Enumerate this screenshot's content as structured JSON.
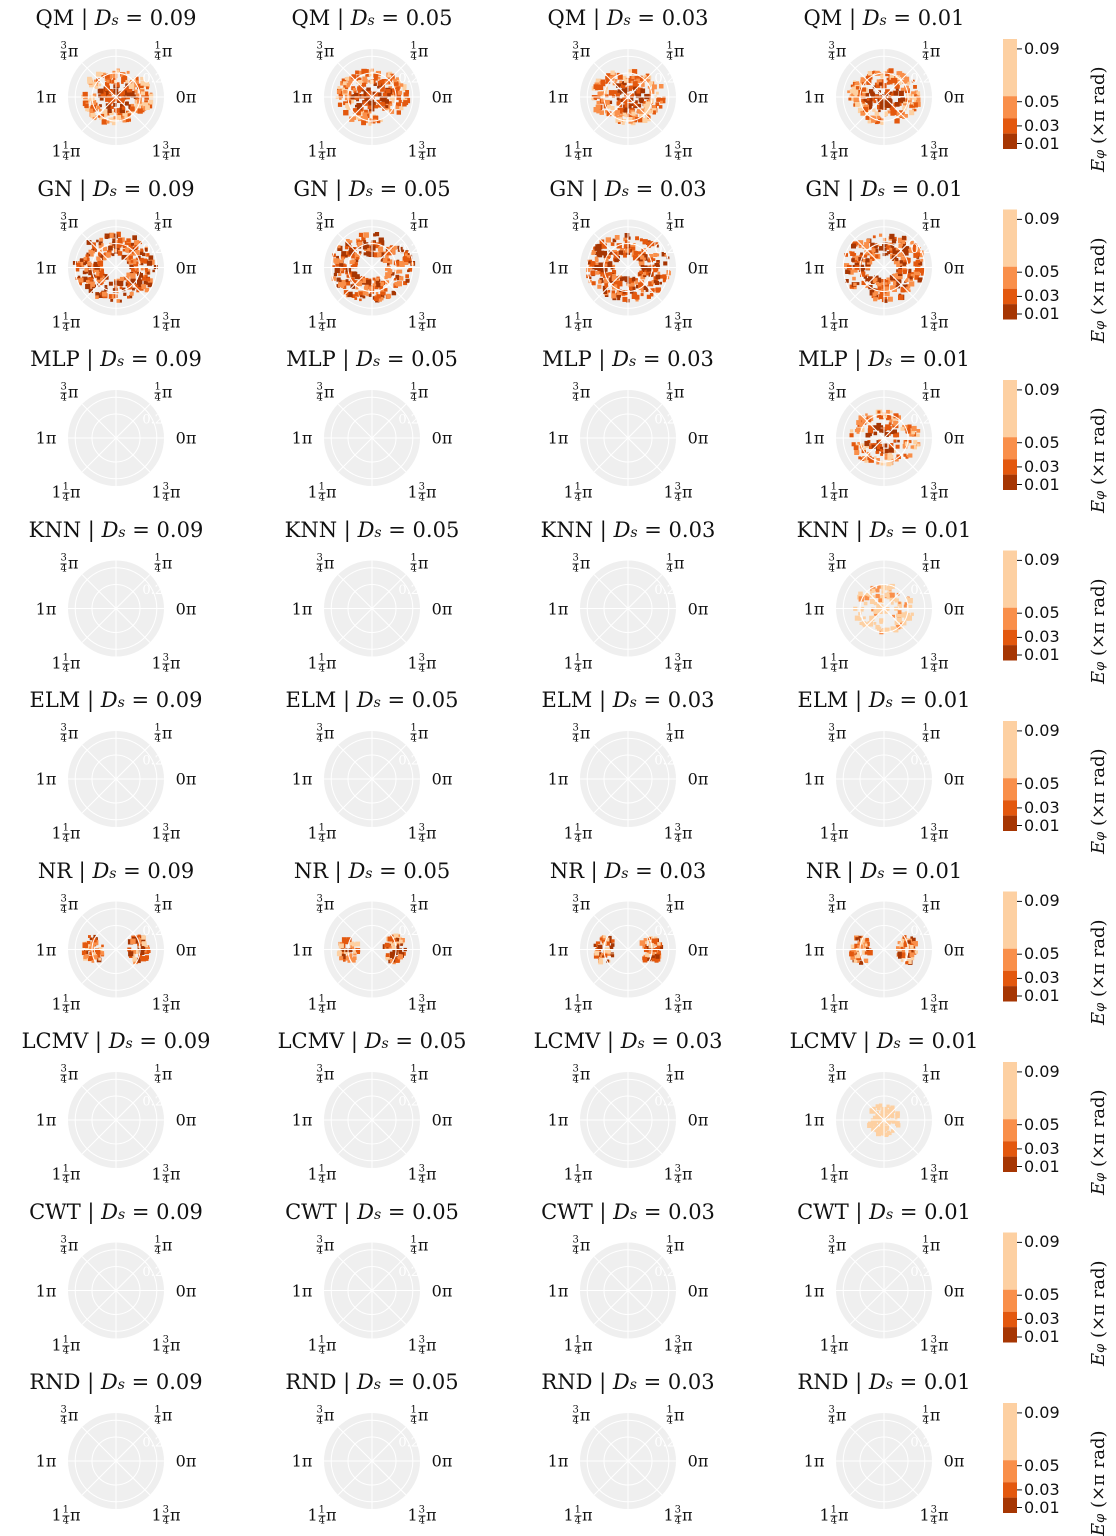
{
  "figure": {
    "methods": [
      "QM",
      "GN",
      "MLP",
      "KNN",
      "ELM",
      "NR",
      "LCMV",
      "CWT",
      "RND"
    ],
    "ds_values": [
      "0.09",
      "0.05",
      "0.03",
      "0.01"
    ],
    "title_template": {
      "sep": " | ",
      "var": "D",
      "sub": "s",
      "eq": " = "
    },
    "angle_labels": {
      "top_left": {
        "num": "3",
        "den": "4",
        "sym": "π"
      },
      "top_right": {
        "num": "1",
        "den": "4",
        "sym": "π"
      },
      "left": "1π",
      "right": "0π",
      "bottom_left": {
        "whole": "1",
        "num": "1",
        "den": "4",
        "sym": "π"
      },
      "bottom_right": {
        "whole": "1",
        "num": "3",
        "den": "4",
        "sym": "π"
      }
    },
    "radial_tick_label": "0.2",
    "colorbar": {
      "ticks": [
        "0.09",
        "0.05",
        "0.03",
        "0.01"
      ],
      "label_var": "E",
      "label_sub": "φ",
      "label_rest": " (×π rad)",
      "colors": [
        "#fdd0a2",
        "#f98f4a",
        "#e3580e",
        "#a63603"
      ]
    },
    "colors": {
      "polar_bg": "#efefef",
      "grid": "#ffffff",
      "light": "#fdd0a2",
      "mid": "#f98f4a",
      "dark": "#e3580e",
      "darkest": "#a63603"
    }
  },
  "chart_data": {
    "type": "heatmap",
    "description_kind": "polar error maps per method and Ds",
    "rows": [
      {
        "method": "QM",
        "fill": [
          0.9,
          0.85,
          0.85,
          0.85
        ],
        "pattern": "disc"
      },
      {
        "method": "GN",
        "fill": [
          1.0,
          1.0,
          1.0,
          1.0
        ],
        "pattern": "ring"
      },
      {
        "method": "MLP",
        "fill": [
          0,
          0,
          0,
          0.7
        ],
        "pattern": "disc-split"
      },
      {
        "method": "KNN",
        "fill": [
          0,
          0,
          0,
          0.6
        ],
        "pattern": "sparse-light"
      },
      {
        "method": "ELM",
        "fill": [
          0,
          0,
          0,
          0
        ],
        "pattern": "none"
      },
      {
        "method": "NR",
        "fill": [
          0.35,
          0.4,
          0.4,
          0.4
        ],
        "pattern": "side-blobs"
      },
      {
        "method": "LCMV",
        "fill": [
          0,
          0,
          0,
          0.35
        ],
        "pattern": "small-light"
      },
      {
        "method": "CWT",
        "fill": [
          0,
          0,
          0,
          0
        ],
        "pattern": "none"
      },
      {
        "method": "RND",
        "fill": [
          0,
          0,
          0,
          0
        ],
        "pattern": "none"
      }
    ],
    "ds": [
      0.09,
      0.05,
      0.03,
      0.01
    ],
    "legend_ticks": [
      0.09,
      0.05,
      0.03,
      0.01
    ]
  }
}
